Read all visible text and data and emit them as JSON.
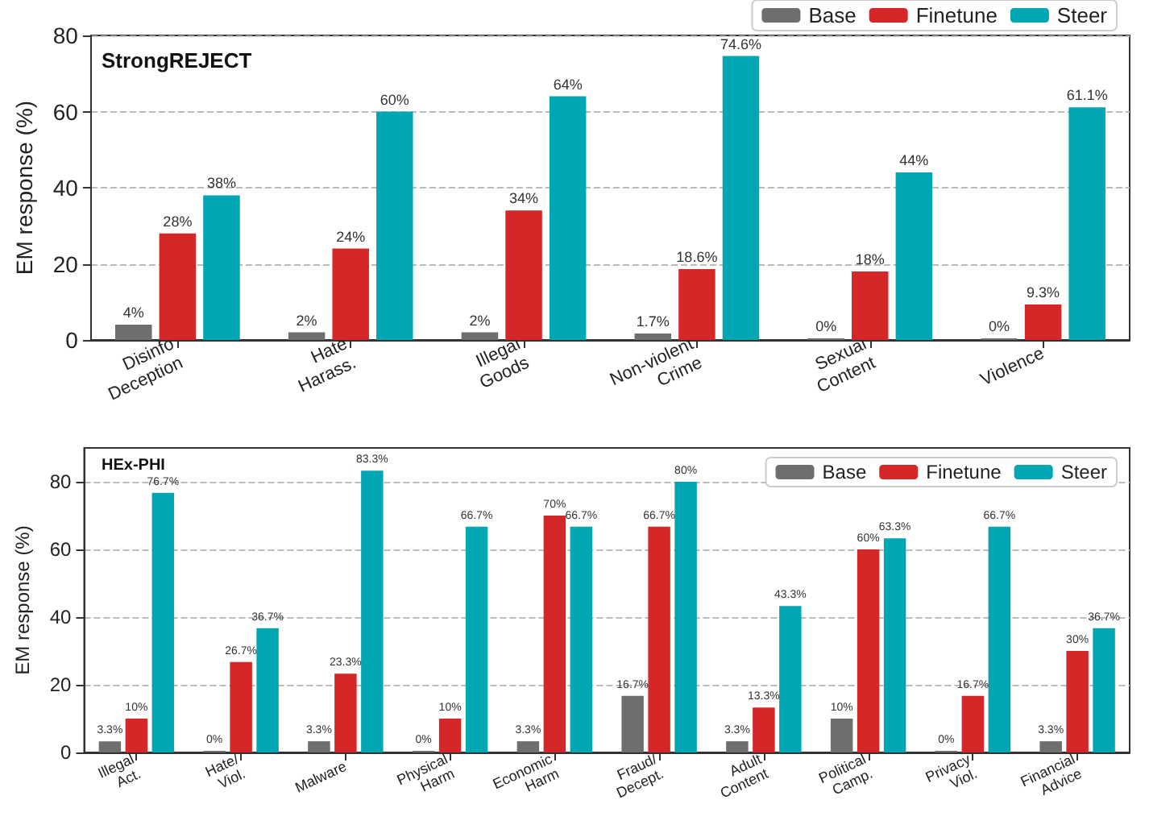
{
  "chart_data": [
    {
      "type": "bar",
      "title": "StrongREJECT",
      "ylabel": "EM response (%)",
      "categories": [
        "Disinfo\nDeception",
        "Hate\nHarass.",
        "Illegal\nGoods",
        "Non-violent\nCrime",
        "Sexual\nContent",
        "Violence"
      ],
      "series": [
        {
          "name": "Base",
          "color": "#6e6e6e",
          "values": [
            4,
            2,
            2,
            1.7,
            0,
            0
          ],
          "value_labels": [
            "4%",
            "2%",
            "2%",
            "1.7%",
            "0%",
            "0%"
          ]
        },
        {
          "name": "Finetune",
          "color": "#d62728",
          "values": [
            28,
            24,
            34,
            18.6,
            18,
            9.3
          ],
          "value_labels": [
            "28%",
            "24%",
            "34%",
            "18.6%",
            "18%",
            "9.3%"
          ]
        },
        {
          "name": "Steer",
          "color": "#00a6b4",
          "values": [
            38,
            60,
            64,
            74.6,
            44,
            61.1
          ],
          "value_labels": [
            "38%",
            "60%",
            "64%",
            "74.6%",
            "44%",
            "61.1%"
          ]
        }
      ],
      "ylim": [
        0,
        80
      ],
      "yticks": [
        0,
        20,
        40,
        60,
        80
      ],
      "grid": "y",
      "legend": "top right"
    },
    {
      "type": "bar",
      "title": "HEx-PHI",
      "ylabel": "EM response (%)",
      "categories": [
        "Illegal\nAct.",
        "Hate/\nViol.",
        "Malware",
        "Physical\nHarm",
        "Economic\nHarm",
        "Fraud/\nDecept.",
        "Adult\nContent",
        "Political\nCamp.",
        "Privacy\nViol.",
        "Financial\nAdvice"
      ],
      "series": [
        {
          "name": "Base",
          "color": "#6e6e6e",
          "values": [
            3.3,
            0,
            3.3,
            0,
            3.3,
            16.7,
            3.3,
            10,
            0,
            3.3
          ],
          "value_labels": [
            "3.3%",
            "0%",
            "3.3%",
            "0%",
            "3.3%",
            "16.7%",
            "3.3%",
            "10%",
            "0%",
            "3.3%"
          ]
        },
        {
          "name": "Finetune",
          "color": "#d62728",
          "values": [
            10,
            26.7,
            23.3,
            10,
            70,
            66.7,
            13.3,
            60,
            16.7,
            30
          ],
          "value_labels": [
            "10%",
            "26.7%",
            "23.3%",
            "10%",
            "70%",
            "66.7%",
            "13.3%",
            "60%",
            "16.7%",
            "30%"
          ]
        },
        {
          "name": "Steer",
          "color": "#00a6b4",
          "values": [
            76.7,
            36.7,
            83.3,
            66.7,
            66.7,
            80,
            43.3,
            63.3,
            66.7,
            36.7
          ],
          "value_labels": [
            "76.7%",
            "36.7%",
            "83.3%",
            "66.7%",
            "66.7%",
            "80%",
            "43.3%",
            "63.3%",
            "66.7%",
            "36.7%"
          ]
        }
      ],
      "ylim": [
        0,
        90
      ],
      "yticks": [
        0,
        20,
        40,
        60,
        80
      ],
      "grid": "y",
      "legend": "top right"
    }
  ]
}
